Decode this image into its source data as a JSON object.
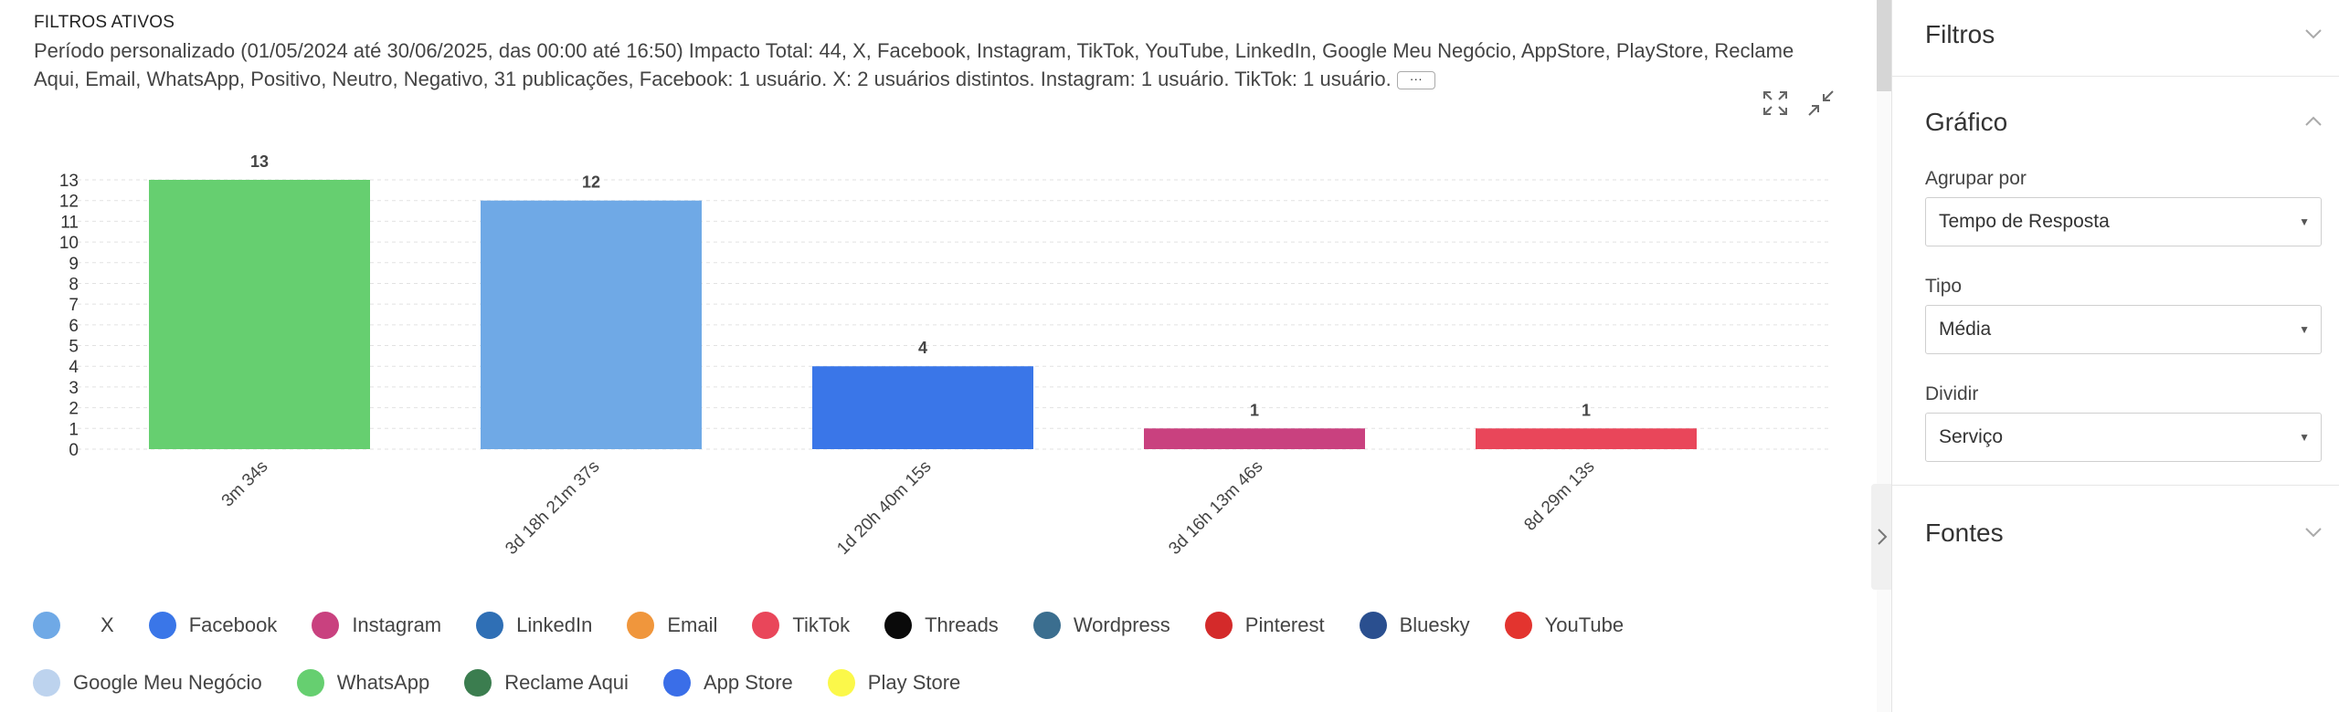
{
  "filters": {
    "title": "FILTROS ATIVOS",
    "description": "Período personalizado (01/05/2024 até 30/06/2025, das 00:00 até 16:50) Impacto Total: 44, X, Facebook, Instagram, TikTok, YouTube, LinkedIn, Google Meu Negócio, AppStore, PlayStore, Reclame Aqui, Email, WhatsApp, Positivo, Neutro, Negativo, 31 publicações, Facebook: 1 usuário. X: 2 usuários distintos. Instagram: 1 usuário. TikTok: 1 usuário.",
    "more_label": "···"
  },
  "toolbar": {
    "expand_icon": "expand-icon",
    "collapse_icon": "collapse-icon"
  },
  "chart_data": {
    "type": "bar",
    "categories": [
      "3m 34s",
      "3d 18h 21m 37s",
      "1d 20h 40m 15s",
      "3d 16h 13m 46s",
      "8d 29m 13s"
    ],
    "values": [
      13,
      12,
      4,
      1,
      1
    ],
    "colors": [
      "#66cf70",
      "#6fa9e6",
      "#3a76e8",
      "#c9417f",
      "#e9465a"
    ],
    "ylim": [
      0,
      13
    ],
    "yticks": [
      "0",
      "1",
      "2",
      "3",
      "4",
      "5",
      "6",
      "7",
      "8",
      "9",
      "10",
      "11",
      "12",
      "13"
    ],
    "grid": true,
    "data_labels": true,
    "legend_position": "bottom"
  },
  "legend": {
    "rows": [
      [
        {
          "label": "X",
          "color": "#6fa9e6"
        },
        {
          "label": "Facebook",
          "color": "#3a76e8"
        },
        {
          "label": "Instagram",
          "color": "#c9417f"
        },
        {
          "label": "LinkedIn",
          "color": "#2f6fb5"
        },
        {
          "label": "Email",
          "color": "#f0963c"
        },
        {
          "label": "TikTok",
          "color": "#e9465a"
        },
        {
          "label": "Threads",
          "color": "#0a0a0a"
        },
        {
          "label": "Wordpress",
          "color": "#3b6e8f"
        },
        {
          "label": "Pinterest",
          "color": "#d42a2a"
        },
        {
          "label": "Bluesky",
          "color": "#2a4f8f"
        },
        {
          "label": "YouTube",
          "color": "#e3342f"
        }
      ],
      [
        {
          "label": "Google Meu Negócio",
          "color": "#bdd3ee"
        },
        {
          "label": "WhatsApp",
          "color": "#66cf70"
        },
        {
          "label": "Reclame Aqui",
          "color": "#3b7d4f"
        },
        {
          "label": "App Store",
          "color": "#3a6ee8"
        },
        {
          "label": "Play Store",
          "color": "#fbf84a"
        }
      ]
    ]
  },
  "sidebar": {
    "filtros_heading": "Filtros",
    "grafico_heading": "Gráfico",
    "agrupar_label": "Agrupar por",
    "agrupar_value": "Tempo de Resposta",
    "tipo_label": "Tipo",
    "tipo_value": "Média",
    "dividir_label": "Dividir",
    "dividir_value": "Serviço",
    "fontes_heading": "Fontes"
  }
}
